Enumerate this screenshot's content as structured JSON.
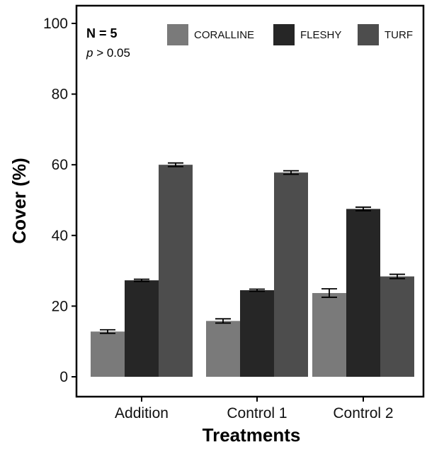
{
  "chart_data": {
    "type": "bar",
    "title": "",
    "xlabel": "Treatments",
    "ylabel": "Cover (%)",
    "categories": [
      "Addition",
      "Control 1",
      "Control 2"
    ],
    "ylim": [
      0,
      100
    ],
    "yticks": [
      0,
      20,
      40,
      60,
      80,
      100
    ],
    "grid": false,
    "legend_position": "top-right",
    "series": [
      {
        "name": "CORALLINE",
        "color": "#7a7a7a",
        "values": [
          12.8,
          15.8,
          23.7
        ],
        "errors": [
          0.5,
          0.6,
          1.2
        ]
      },
      {
        "name": "FLESHY",
        "color": "#262626",
        "values": [
          27.3,
          24.5,
          47.5
        ],
        "errors": [
          0.3,
          0.3,
          0.5
        ]
      },
      {
        "name": "TURF",
        "color": "#4d4d4d",
        "values": [
          60.0,
          57.8,
          28.4
        ],
        "errors": [
          0.5,
          0.5,
          0.6
        ]
      }
    ],
    "annotations": {
      "n": "N = 5",
      "p_symbol": "p",
      "p_rest": " > 0.05"
    }
  }
}
